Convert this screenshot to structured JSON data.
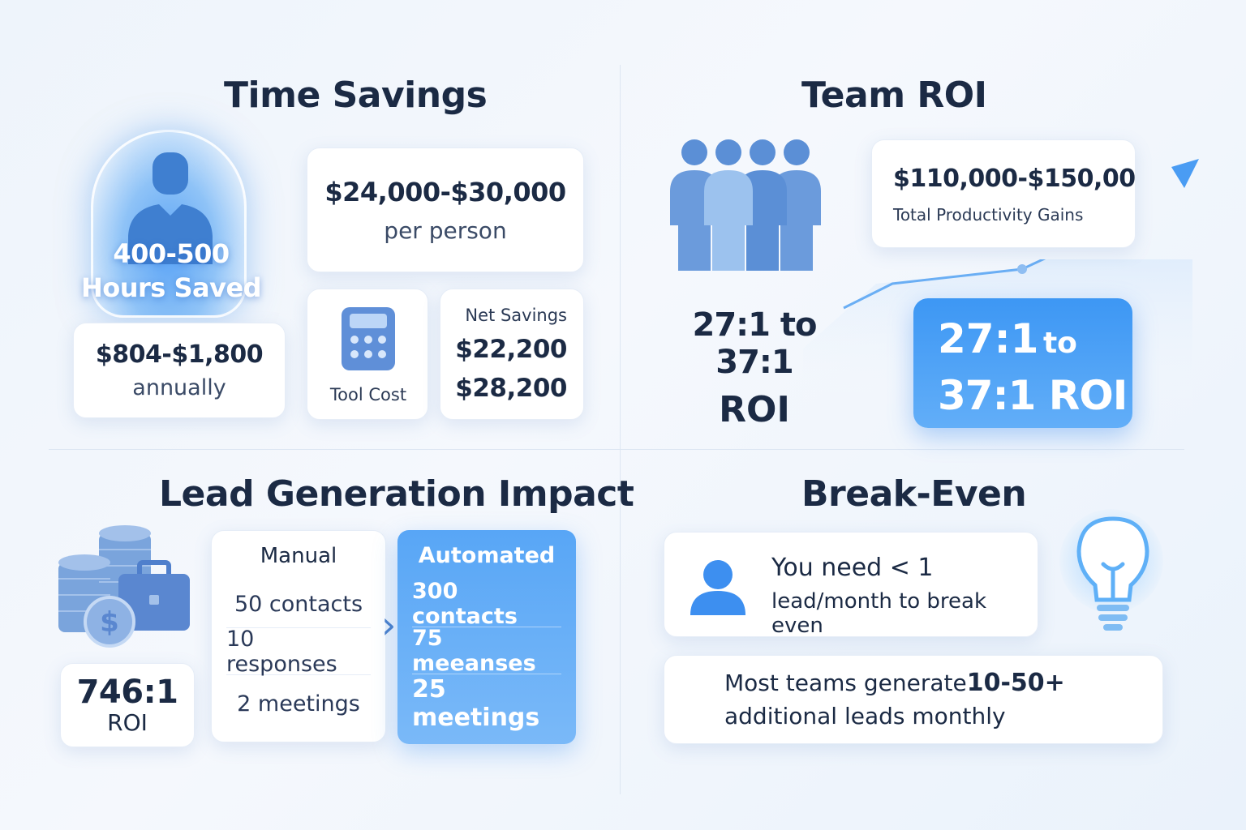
{
  "time_savings": {
    "title": "Time Savings",
    "hours_line1": "400-500",
    "hours_line2": "Hours Saved",
    "value_per_person": "$24,000-$30,000",
    "per_person_label": "per person",
    "annual_cost": "$804-$1,800",
    "annual_label": "annually",
    "tool_cost_label": "Tool Cost",
    "net_savings_label": "Net Savings",
    "net_savings_line1": "$22,200",
    "net_savings_line2": "$28,200"
  },
  "team_roi": {
    "title": "Team ROI",
    "productivity_value": "$110,000-$150,00",
    "productivity_label": "Total Productivity Gains",
    "roi_mid_line1": "27:1 to 37:1",
    "roi_mid_line2": "ROI",
    "roi_blue_line1_a": "27:1",
    "roi_blue_line1_b": "to",
    "roi_blue_line2": "37:1 ROI"
  },
  "lead_gen": {
    "title": "Lead Generation Impact",
    "roi_value": "746:1",
    "roi_label": "ROI",
    "manual": {
      "header": "Manual",
      "rows": [
        "50 contacts",
        "10 responses",
        "2 meetings"
      ]
    },
    "automated": {
      "header": "Automated",
      "rows": [
        "300 contacts",
        "75 meeanses",
        "25 meetings"
      ]
    },
    "arrow": "›"
  },
  "break_even": {
    "title": "Break-Even",
    "need_line1": "You need < 1",
    "need_line2": "lead/month to break even",
    "teams_line1_a": "Most teams generate",
    "teams_line1_b": "10-50+",
    "teams_line2": "additional leads monthly"
  },
  "colors": {
    "accent": "#3d97f4",
    "accent_light": "#62aef8",
    "text_dark": "#1b2a44",
    "icon_blue": "#5b8fd6"
  },
  "icons": [
    "person-silhouette-icon",
    "calculator-icon",
    "team-icon",
    "trend-arrow-icon",
    "coins-icon",
    "briefcase-icon",
    "dollar-coin-icon",
    "chevron-right-icon",
    "user-icon",
    "lightbulb-icon"
  ]
}
